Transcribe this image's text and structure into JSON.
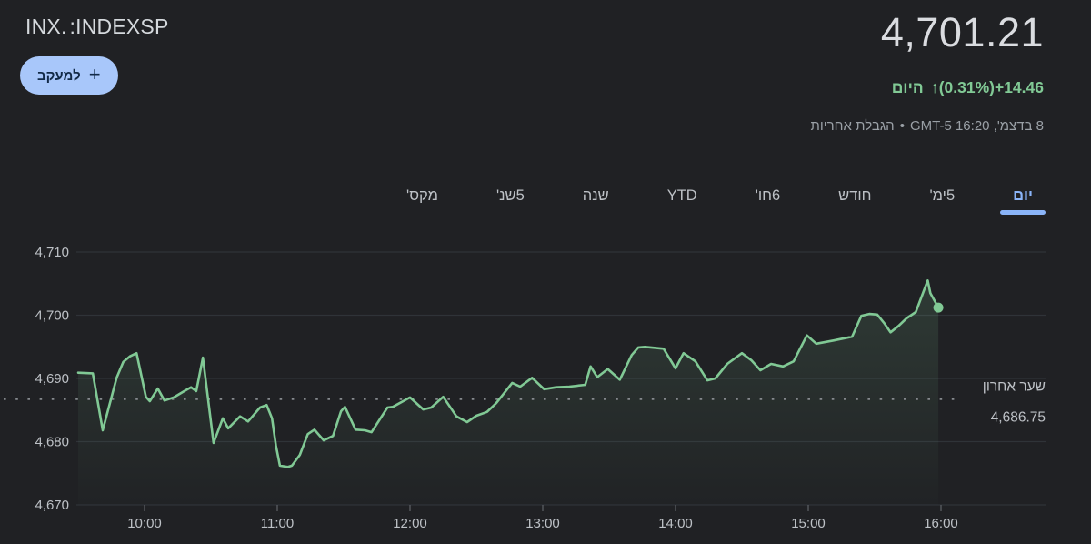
{
  "header": {
    "exchange_label": "INDEXSP:",
    "symbol": ".INX",
    "follow_button": {
      "label": "למעקב",
      "plus_icon": "+"
    }
  },
  "quote": {
    "price": "4,701.21",
    "change": {
      "today_label": "היום",
      "arrow": "↑",
      "percent": "(0.31%)",
      "amount": "+14.46"
    },
    "meta_datetime": "8 בדצמ', 16:20 GMT-5",
    "meta_separator": "•",
    "disclaimer_label": "הגבלת אחריות"
  },
  "tabs": [
    {
      "id": "1d",
      "label": "יום",
      "selected": true
    },
    {
      "id": "5d",
      "label": "5ימ'",
      "selected": false
    },
    {
      "id": "1m",
      "label": "חודש",
      "selected": false
    },
    {
      "id": "6m",
      "label": "6חו'",
      "selected": false
    },
    {
      "id": "ytd",
      "label": "YTD",
      "selected": false
    },
    {
      "id": "1y",
      "label": "שנה",
      "selected": false
    },
    {
      "id": "5y",
      "label": "5שנ'",
      "selected": false
    },
    {
      "id": "max",
      "label": "מקס'",
      "selected": false
    }
  ],
  "colors": {
    "background": "#202124",
    "primary_text": "#dadce0",
    "secondary_text": "#9aa0a6",
    "tick_text": "#bdc1c6",
    "green": "#81c995",
    "accent_blue": "#8ab4f8",
    "button_bg": "#a8c7fa",
    "grid": "#2f3338",
    "dotted": "#85898d",
    "x_tick_mark": "#5f6368"
  },
  "chart_data": {
    "type": "line",
    "x_unit": "hour_of_day",
    "x_range": [
      9.5,
      16.0
    ],
    "y_range": [
      4670,
      4710
    ],
    "grid": true,
    "x_ticks": [
      {
        "t": 10,
        "label": "10:00"
      },
      {
        "t": 11,
        "label": "11:00"
      },
      {
        "t": 12,
        "label": "12:00"
      },
      {
        "t": 13,
        "label": "13:00"
      },
      {
        "t": 14,
        "label": "14:00"
      },
      {
        "t": 15,
        "label": "15:00"
      },
      {
        "t": 16,
        "label": "16:00"
      }
    ],
    "y_ticks": [
      {
        "v": 4670,
        "label": "4,670"
      },
      {
        "v": 4680,
        "label": "4,680"
      },
      {
        "v": 4690,
        "label": "4,690"
      },
      {
        "v": 4700,
        "label": "4,700"
      },
      {
        "v": 4710,
        "label": "4,710"
      }
    ],
    "last_price": {
      "value": 4686.75,
      "label": "שער אחרון",
      "value_label": "4,686.75"
    },
    "series": [
      {
        "name": "INDEXSP: .INX",
        "color": "#81c995",
        "points": [
          [
            9.5,
            4690.9
          ],
          [
            9.61,
            4690.8
          ],
          [
            9.685,
            4681.8
          ],
          [
            9.79,
            4690.1
          ],
          [
            9.84,
            4692.6
          ],
          [
            9.89,
            4693.5
          ],
          [
            9.94,
            4694.0
          ],
          [
            10.01,
            4687.1
          ],
          [
            10.04,
            4686.4
          ],
          [
            10.1,
            4688.4
          ],
          [
            10.15,
            4686.5
          ],
          [
            10.22,
            4687.0
          ],
          [
            10.3,
            4688.0
          ],
          [
            10.35,
            4688.6
          ],
          [
            10.39,
            4688.0
          ],
          [
            10.44,
            4693.3
          ],
          [
            10.52,
            4679.8
          ],
          [
            10.59,
            4683.7
          ],
          [
            10.63,
            4682.1
          ],
          [
            10.72,
            4684.0
          ],
          [
            10.78,
            4683.2
          ],
          [
            10.87,
            4685.4
          ],
          [
            10.92,
            4685.8
          ],
          [
            10.96,
            4683.7
          ],
          [
            10.99,
            4679.4
          ],
          [
            11.02,
            4676.2
          ],
          [
            11.08,
            4676.0
          ],
          [
            11.11,
            4676.2
          ],
          [
            11.17,
            4677.9
          ],
          [
            11.23,
            4681.2
          ],
          [
            11.28,
            4681.9
          ],
          [
            11.35,
            4680.2
          ],
          [
            11.42,
            4680.9
          ],
          [
            11.48,
            4684.8
          ],
          [
            11.51,
            4685.5
          ],
          [
            11.59,
            4681.9
          ],
          [
            11.66,
            4681.8
          ],
          [
            11.71,
            4681.5
          ],
          [
            11.83,
            4685.4
          ],
          [
            11.87,
            4685.5
          ],
          [
            12.0,
            4687.0
          ],
          [
            12.1,
            4685.1
          ],
          [
            12.16,
            4685.4
          ],
          [
            12.25,
            4687.1
          ],
          [
            12.35,
            4684.0
          ],
          [
            12.43,
            4683.1
          ],
          [
            12.5,
            4684.1
          ],
          [
            12.58,
            4684.7
          ],
          [
            12.65,
            4686.1
          ],
          [
            12.77,
            4689.3
          ],
          [
            12.83,
            4688.7
          ],
          [
            12.92,
            4690.1
          ],
          [
            13.01,
            4688.3
          ],
          [
            13.1,
            4688.6
          ],
          [
            13.2,
            4688.7
          ],
          [
            13.32,
            4689.0
          ],
          [
            13.36,
            4691.9
          ],
          [
            13.41,
            4690.2
          ],
          [
            13.49,
            4691.5
          ],
          [
            13.58,
            4689.8
          ],
          [
            13.67,
            4693.7
          ],
          [
            13.72,
            4694.9
          ],
          [
            13.77,
            4695.0
          ],
          [
            13.91,
            4694.7
          ],
          [
            14.0,
            4691.6
          ],
          [
            14.06,
            4694.0
          ],
          [
            14.15,
            4692.7
          ],
          [
            14.24,
            4689.7
          ],
          [
            14.3,
            4690.0
          ],
          [
            14.39,
            4692.3
          ],
          [
            14.5,
            4694.0
          ],
          [
            14.57,
            4692.9
          ],
          [
            14.64,
            4691.3
          ],
          [
            14.72,
            4692.3
          ],
          [
            14.81,
            4691.9
          ],
          [
            14.89,
            4692.7
          ],
          [
            14.99,
            4696.8
          ],
          [
            15.06,
            4695.5
          ],
          [
            15.19,
            4696.0
          ],
          [
            15.26,
            4696.3
          ],
          [
            15.33,
            4696.6
          ],
          [
            15.4,
            4699.9
          ],
          [
            15.46,
            4700.2
          ],
          [
            15.52,
            4700.1
          ],
          [
            15.57,
            4698.8
          ],
          [
            15.62,
            4697.3
          ],
          [
            15.68,
            4698.3
          ],
          [
            15.74,
            4699.5
          ],
          [
            15.81,
            4700.5
          ],
          [
            15.9,
            4705.5
          ],
          [
            15.92,
            4703.5
          ],
          [
            15.98,
            4701.21
          ]
        ]
      }
    ],
    "end_marker": {
      "t": 15.98,
      "v": 4701.21
    }
  }
}
